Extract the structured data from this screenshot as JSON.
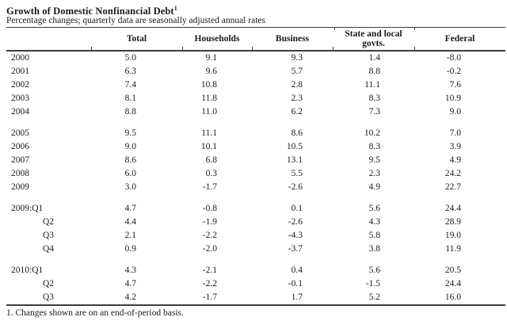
{
  "page": {
    "title": "Growth of Domestic Nonfinancial Debt",
    "title_footnote_marker": "1",
    "subtitle": "Percentage changes; quarterly data are seasonally adjusted annual rates",
    "footnote": "1. Changes shown are on an end-of-period basis."
  },
  "table": {
    "columns": [
      "Total",
      "Households",
      "Business",
      "State and local govts.",
      "Federal"
    ],
    "sections": [
      {
        "rows": [
          {
            "label": "2000",
            "indent": false,
            "values": [
              "5.0",
              "9.1",
              "9.3",
              "1.4",
              "-8.0"
            ]
          },
          {
            "label": "2001",
            "indent": false,
            "values": [
              "6.3",
              "9.6",
              "5.7",
              "8.8",
              "-0.2"
            ]
          },
          {
            "label": "2002",
            "indent": false,
            "values": [
              "7.4",
              "10.8",
              "2.8",
              "11.1",
              "7.6"
            ]
          },
          {
            "label": "2003",
            "indent": false,
            "values": [
              "8.1",
              "11.8",
              "2.3",
              "8.3",
              "10.9"
            ]
          },
          {
            "label": "2004",
            "indent": false,
            "values": [
              "8.8",
              "11.0",
              "6.2",
              "7.3",
              "9.0"
            ]
          }
        ]
      },
      {
        "rows": [
          {
            "label": "2005",
            "indent": false,
            "values": [
              "9.5",
              "11.1",
              "8.6",
              "10.2",
              "7.0"
            ]
          },
          {
            "label": "2006",
            "indent": false,
            "values": [
              "9.0",
              "10.1",
              "10.5",
              "8.3",
              "3.9"
            ]
          },
          {
            "label": "2007",
            "indent": false,
            "values": [
              "8.6",
              "6.8",
              "13.1",
              "9.5",
              "4.9"
            ]
          },
          {
            "label": "2008",
            "indent": false,
            "values": [
              "6.0",
              "0.3",
              "5.5",
              "2.3",
              "24.2"
            ]
          },
          {
            "label": "2009",
            "indent": false,
            "values": [
              "3.0",
              "-1.7",
              "-2.6",
              "4.9",
              "22.7"
            ]
          }
        ]
      },
      {
        "rows": [
          {
            "label": "2009:Q1",
            "indent": false,
            "values": [
              "4.7",
              "-0.8",
              "0.1",
              "5.6",
              "24.4"
            ]
          },
          {
            "label": "Q2",
            "indent": true,
            "values": [
              "4.4",
              "-1.9",
              "-2.6",
              "4.3",
              "28.9"
            ]
          },
          {
            "label": "Q3",
            "indent": true,
            "values": [
              "2.1",
              "-2.2",
              "-4.3",
              "5.8",
              "19.0"
            ]
          },
          {
            "label": "Q4",
            "indent": true,
            "values": [
              "0.9",
              "-2.0",
              "-3.7",
              "3.8",
              "11.9"
            ]
          }
        ]
      },
      {
        "rows": [
          {
            "label": "2010:Q1",
            "indent": false,
            "values": [
              "4.3",
              "-2.1",
              "0.4",
              "5.6",
              "20.5"
            ]
          },
          {
            "label": "Q2",
            "indent": true,
            "values": [
              "4.7",
              "-2.2",
              "-0.1",
              "-1.5",
              "24.4"
            ]
          },
          {
            "label": "Q3",
            "indent": true,
            "values": [
              "4.2",
              "-1.7",
              "1.7",
              "5.2",
              "16.0"
            ]
          }
        ]
      }
    ]
  }
}
